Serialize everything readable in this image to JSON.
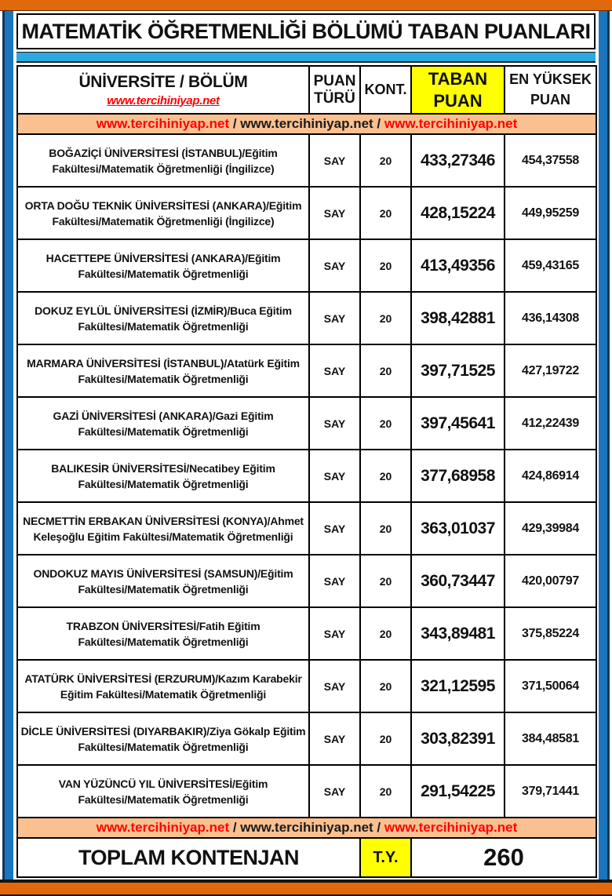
{
  "title": "MATEMATİK ÖĞRETMENLİĞİ BÖLÜMÜ TABAN PUANLARI",
  "columns": {
    "university": "ÜNİVERSİTE / BÖLÜM",
    "university_link": "www.tercihiniyap.net",
    "score_type": "PUAN TÜRÜ",
    "quota": "KONT.",
    "base_score": "TABAN PUAN",
    "max_score": "EN YÜKSEK PUAN"
  },
  "link_banner": {
    "separator": " / ",
    "links": [
      {
        "text": "www.tercihiniyap.net",
        "color": "#FF0000"
      },
      {
        "text": "www.tercihiniyap.net",
        "color": "#1A1A1A"
      },
      {
        "text": "www.tercihiniyap.net",
        "color": "#FF0000"
      }
    ]
  },
  "rows": [
    {
      "university": "BOĞAZİÇİ ÜNİVERSİTESİ (İSTANBUL)/Eğitim Fakültesi/Matematik Öğretmenliği (İngilizce)",
      "score_type": "SAY",
      "quota": "20",
      "base_score": "433,27346",
      "max_score": "454,37558"
    },
    {
      "university": "ORTA DOĞU TEKNİK ÜNİVERSİTESİ (ANKARA)/Eğitim Fakültesi/Matematik Öğretmenliği (İngilizce)",
      "score_type": "SAY",
      "quota": "20",
      "base_score": "428,15224",
      "max_score": "449,95259"
    },
    {
      "university": "HACETTEPE ÜNİVERSİTESİ (ANKARA)/Eğitim Fakültesi/Matematik Öğretmenliği",
      "score_type": "SAY",
      "quota": "20",
      "base_score": "413,49356",
      "max_score": "459,43165"
    },
    {
      "university": "DOKUZ EYLÜL ÜNİVERSİTESİ (İZMİR)/Buca Eğitim Fakültesi/Matematik Öğretmenliği",
      "score_type": "SAY",
      "quota": "20",
      "base_score": "398,42881",
      "max_score": "436,14308"
    },
    {
      "university": "MARMARA ÜNİVERSİTESİ (İSTANBUL)/Atatürk Eğitim Fakültesi/Matematik Öğretmenliği",
      "score_type": "SAY",
      "quota": "20",
      "base_score": "397,71525",
      "max_score": "427,19722"
    },
    {
      "university": "GAZİ ÜNİVERSİTESİ (ANKARA)/Gazi Eğitim Fakültesi/Matematik Öğretmenliği",
      "score_type": "SAY",
      "quota": "20",
      "base_score": "397,45641",
      "max_score": "412,22439"
    },
    {
      "university": "BALIKESİR ÜNİVERSİTESİ/Necatibey Eğitim Fakültesi/Matematik Öğretmenliği",
      "score_type": "SAY",
      "quota": "20",
      "base_score": "377,68958",
      "max_score": "424,86914"
    },
    {
      "university": "NECMETTİN ERBAKAN ÜNİVERSİTESİ (KONYA)/Ahmet Keleşoğlu Eğitim Fakültesi/Matematik Öğretmenliği",
      "score_type": "SAY",
      "quota": "20",
      "base_score": "363,01037",
      "max_score": "429,39984"
    },
    {
      "university": "ONDOKUZ MAYIS ÜNİVERSİTESİ (SAMSUN)/Eğitim Fakültesi/Matematik Öğretmenliği",
      "score_type": "SAY",
      "quota": "20",
      "base_score": "360,73447",
      "max_score": "420,00797"
    },
    {
      "university": "TRABZON ÜNİVERSİTESİ/Fatih Eğitim Fakültesi/Matematik Öğretmenliği",
      "score_type": "SAY",
      "quota": "20",
      "base_score": "343,89481",
      "max_score": "375,85224"
    },
    {
      "university": "ATATÜRK ÜNİVERSİTESİ (ERZURUM)/Kazım Karabekir Eğitim Fakültesi/Matematik Öğretmenliği",
      "score_type": "SAY",
      "quota": "20",
      "base_score": "321,12595",
      "max_score": "371,50064"
    },
    {
      "university": "DİCLE ÜNİVERSİTESİ (DIYARBAKIR)/Ziya Gökalp Eğitim Fakültesi/Matematik Öğretmenliği",
      "score_type": "SAY",
      "quota": "20",
      "base_score": "303,82391",
      "max_score": "384,48581"
    },
    {
      "university": "VAN YÜZÜNCÜ YIL ÜNİVERSİTESİ/Eğitim Fakültesi/Matematik Öğretmenliği",
      "score_type": "SAY",
      "quota": "20",
      "base_score": "291,54225",
      "max_score": "379,71441"
    }
  ],
  "footer": {
    "label": "TOPLAM KONTENJAN",
    "score_type_abbr": "T.Y.",
    "total_quota": "260"
  },
  "colors": {
    "frame_orange": "#E2690B",
    "frame_blue": "#1B75BC",
    "divider_cyan": "#29ABE2",
    "banner_salmon": "#FAC090",
    "highlight_yellow": "#FFFF00",
    "link_red": "#FF0000"
  }
}
